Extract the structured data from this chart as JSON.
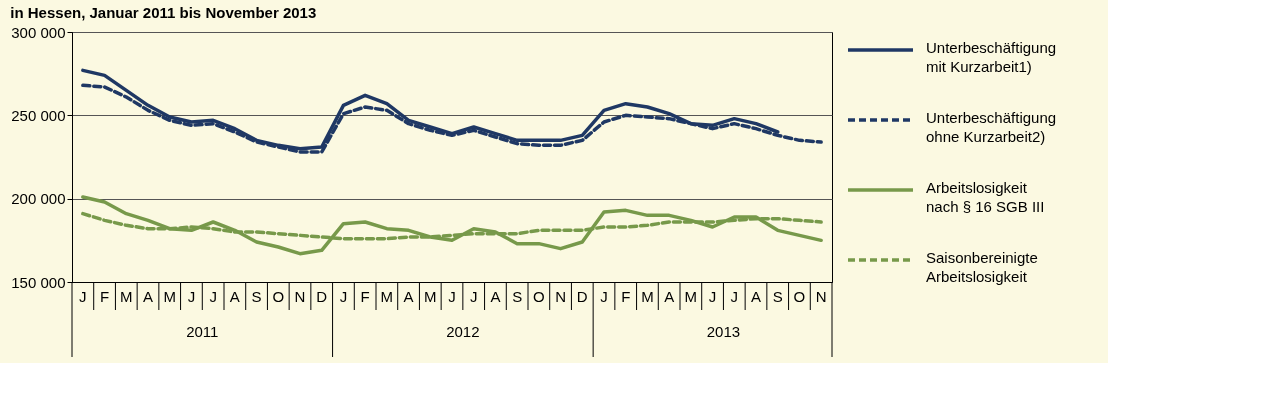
{
  "chart_data": {
    "type": "line",
    "title": "in Hessen, Januar 2011 bis November 2013",
    "categories": [
      "J",
      "F",
      "M",
      "A",
      "M",
      "J",
      "J",
      "A",
      "S",
      "O",
      "N",
      "D",
      "J",
      "F",
      "M",
      "A",
      "M",
      "J",
      "J",
      "A",
      "S",
      "O",
      "N",
      "D",
      "J",
      "F",
      "M",
      "A",
      "M",
      "J",
      "J",
      "A",
      "S",
      "O",
      "N"
    ],
    "annotations": [
      "2011",
      "2012",
      "2013"
    ],
    "ylim": [
      150000,
      300000
    ],
    "yticks": [
      {
        "value": 150000,
        "label": "150 000"
      },
      {
        "value": 200000,
        "label": "200 000"
      },
      {
        "value": 250000,
        "label": "250 000"
      },
      {
        "value": 300000,
        "label": "300 000"
      }
    ],
    "grid": "y",
    "legend": "right",
    "series": [
      {
        "name": "Unterbeschäftigung mit Kurzarbeit1)",
        "color": "#1f3864",
        "line_style": "solid",
        "values": [
          277000,
          274000,
          265000,
          256000,
          249000,
          246000,
          247000,
          242000,
          235000,
          232000,
          230000,
          231000,
          256000,
          262000,
          257000,
          247000,
          243000,
          239000,
          243000,
          239000,
          235000,
          235000,
          235000,
          238000,
          253000,
          257000,
          255000,
          251000,
          245000,
          244000,
          248000,
          245000,
          240000,
          null,
          null
        ]
      },
      {
        "name": "Unterbeschäftigung ohne Kurzarbeit2)",
        "color": "#1f3864",
        "line_style": "dashed",
        "values": [
          268000,
          267000,
          261000,
          253000,
          247000,
          244000,
          245000,
          240000,
          234000,
          231000,
          228000,
          228000,
          251000,
          255000,
          253000,
          245000,
          241000,
          238000,
          241000,
          237000,
          233000,
          232000,
          232000,
          235000,
          246000,
          250000,
          249000,
          248000,
          245000,
          242000,
          245000,
          242000,
          238000,
          235000,
          234000
        ]
      },
      {
        "name": "Arbeitslosigkeit nach § 16 SGB III",
        "color": "#77994a",
        "line_style": "solid",
        "values": [
          201000,
          198000,
          191000,
          187000,
          182000,
          181000,
          186000,
          181000,
          174000,
          171000,
          167000,
          169000,
          185000,
          186000,
          182000,
          181000,
          177000,
          175000,
          182000,
          180000,
          173000,
          173000,
          170000,
          174000,
          192000,
          193000,
          190000,
          190000,
          187000,
          183000,
          189000,
          189000,
          181000,
          178000,
          175000
        ]
      },
      {
        "name": "Saisonbereinigte Arbeitslosigkeit",
        "color": "#77994a",
        "line_style": "dashed",
        "values": [
          191000,
          187000,
          184000,
          182000,
          182000,
          183000,
          182000,
          180000,
          180000,
          179000,
          178000,
          177000,
          176000,
          176000,
          176000,
          177000,
          177000,
          178000,
          179000,
          179000,
          179000,
          181000,
          181000,
          181000,
          183000,
          183000,
          184000,
          186000,
          186000,
          186000,
          187000,
          188000,
          188000,
          187000,
          186000
        ]
      }
    ]
  }
}
